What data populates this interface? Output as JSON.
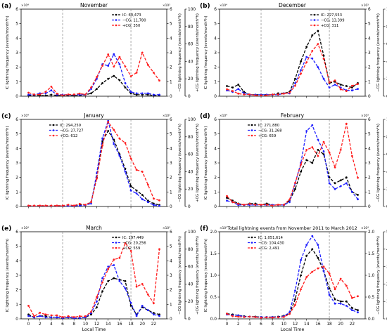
{
  "figure": {
    "xlabel": "Local Time",
    "left_ylabel": "IC lightning frequency (events/month*h)",
    "neg_ylabel": "−CG lightning frequency (events/month*h)",
    "pos_ylabel": "+CG lightning frequency (events/month*h)",
    "series_colors": {
      "ic": "#000000",
      "neg": "#1f1fff",
      "pos": "#ff1f1f"
    },
    "grid": false,
    "dashed_vlines_at": [
      6,
      18
    ]
  },
  "chart_data": [
    {
      "panel": "(a)",
      "title": "November",
      "type": "line",
      "x": [
        0,
        1,
        2,
        3,
        4,
        5,
        6,
        7,
        8,
        9,
        10,
        11,
        12,
        13,
        14,
        15,
        16,
        17,
        18,
        19,
        20,
        21,
        22,
        23
      ],
      "y_left_lim": [
        0,
        6
      ],
      "y_left_ticks": [
        "0",
        "1",
        "2",
        "3",
        "4",
        "5",
        "6"
      ],
      "y_left_mult": "×10⁴",
      "y_mid_lim": [
        0,
        6
      ],
      "y_mid_ticks": [
        "0",
        "1",
        "2",
        "3",
        "4",
        "5",
        "6"
      ],
      "y_mid_mult": "×10³",
      "y_right_lim": [
        0,
        100
      ],
      "y_right_ticks": [
        "0",
        "20",
        "40",
        "60",
        "80",
        "100"
      ],
      "legend_position": "top-right",
      "series": [
        {
          "name": "IC: 60,473",
          "key": "ic",
          "axis": "left",
          "values": [
            0.05,
            0.05,
            0.05,
            0.05,
            0.1,
            0.05,
            0.05,
            0.05,
            0.05,
            0.05,
            0.1,
            0.2,
            0.5,
            0.9,
            1.2,
            1.4,
            1.1,
            0.6,
            0.2,
            0.1,
            0.1,
            0.1,
            0.05,
            0.05
          ]
        },
        {
          "name": "−CG: 11,780",
          "key": "neg",
          "axis": "mid",
          "values": [
            0.1,
            0.1,
            0.2,
            0.2,
            0.4,
            0.1,
            0.1,
            0.1,
            0.1,
            0.1,
            0.1,
            0.5,
            1.2,
            2.2,
            2.1,
            2.9,
            2.2,
            0.9,
            0.3,
            0.2,
            0.2,
            0.2,
            0.1,
            0.1
          ]
        },
        {
          "name": "+CG: 350",
          "key": "pos",
          "axis": "right",
          "values": [
            4,
            2,
            2,
            5,
            11,
            3,
            1,
            2,
            2,
            3,
            2,
            10,
            22,
            35,
            48,
            34,
            45,
            34,
            23,
            27,
            50,
            36,
            27,
            18
          ]
        }
      ]
    },
    {
      "panel": "(b)",
      "title": "December",
      "type": "line",
      "x": [
        0,
        1,
        2,
        3,
        4,
        5,
        6,
        7,
        8,
        9,
        10,
        11,
        12,
        13,
        14,
        15,
        16,
        17,
        18,
        19,
        20,
        21,
        22,
        23
      ],
      "y_left_lim": [
        0,
        6
      ],
      "y_left_ticks": [
        "0",
        "1",
        "2",
        "3",
        "4",
        "5",
        "6"
      ],
      "y_left_mult": "×10⁴",
      "y_mid_lim": [
        0,
        6
      ],
      "y_mid_ticks": [
        "0",
        "1",
        "2",
        "3",
        "4",
        "5",
        "6"
      ],
      "y_mid_mult": "×10³",
      "y_right_lim": [
        0,
        100
      ],
      "y_right_ticks": [
        "0",
        "20",
        "40",
        "60",
        "80",
        "100"
      ],
      "legend_position": "top-right",
      "series": [
        {
          "name": "IC: 227,553",
          "key": "ic",
          "axis": "left",
          "values": [
            0.7,
            0.6,
            0.8,
            0.3,
            0.1,
            0.1,
            0.1,
            0.1,
            0.1,
            0.2,
            0.2,
            0.3,
            1.2,
            2.4,
            3.4,
            4.2,
            4.5,
            2.8,
            0.9,
            1.0,
            0.8,
            0.7,
            0.6,
            0.9
          ]
        },
        {
          "name": "−CG: 13,399",
          "key": "neg",
          "axis": "mid",
          "values": [
            0.4,
            0.3,
            0.5,
            0.2,
            0.1,
            0.1,
            0.1,
            0.1,
            0.1,
            0.1,
            0.2,
            0.2,
            0.9,
            1.8,
            2.7,
            2.6,
            2.0,
            1.2,
            0.6,
            0.8,
            0.6,
            0.4,
            0.4,
            0.5
          ]
        },
        {
          "name": "+CG: 311",
          "key": "pos",
          "axis": "right",
          "values": [
            8,
            6,
            3,
            2,
            2,
            1,
            1,
            1,
            2,
            2,
            3,
            4,
            12,
            26,
            39,
            52,
            60,
            43,
            16,
            18,
            8,
            6,
            12,
            14
          ]
        }
      ]
    },
    {
      "panel": "(c)",
      "title": "January",
      "type": "line",
      "x": [
        0,
        1,
        2,
        3,
        4,
        5,
        6,
        7,
        8,
        9,
        10,
        11,
        12,
        13,
        14,
        15,
        16,
        17,
        18,
        19,
        20,
        21,
        22,
        23
      ],
      "y_left_lim": [
        0,
        6
      ],
      "y_left_ticks": [
        "0",
        "1",
        "2",
        "3",
        "4",
        "5",
        "6"
      ],
      "y_left_mult": "×10⁴",
      "y_mid_lim": [
        0,
        6
      ],
      "y_mid_ticks": [
        "0",
        "1",
        "2",
        "3",
        "4",
        "5",
        "6"
      ],
      "y_mid_mult": "×10³",
      "y_right_lim": [
        0,
        100
      ],
      "y_right_ticks": [
        "0",
        "20",
        "40",
        "60",
        "80",
        "100"
      ],
      "legend_position": "top-left",
      "series": [
        {
          "name": "IC: 294,259",
          "key": "ic",
          "axis": "left",
          "values": [
            0.05,
            0.05,
            0.05,
            0.05,
            0.05,
            0.05,
            0.05,
            0.05,
            0.05,
            0.1,
            0.1,
            0.3,
            2.0,
            4.5,
            5.2,
            4.6,
            3.6,
            2.6,
            1.4,
            1.1,
            0.8,
            0.4,
            0.2,
            0.1
          ]
        },
        {
          "name": "−CG: 27,727",
          "key": "neg",
          "axis": "mid",
          "values": [
            0.05,
            0.05,
            0.05,
            0.05,
            0.05,
            0.05,
            0.05,
            0.05,
            0.05,
            0.05,
            0.1,
            0.2,
            2.3,
            4.7,
            5.9,
            4.3,
            3.5,
            2.4,
            1.1,
            0.9,
            0.5,
            0.3,
            0.1,
            0.05
          ]
        },
        {
          "name": "+CG: 612",
          "key": "pos",
          "axis": "right",
          "values": [
            1,
            1,
            1,
            1,
            1,
            1,
            1,
            2,
            1,
            3,
            2,
            5,
            32,
            70,
            97,
            88,
            78,
            73,
            55,
            42,
            40,
            25,
            9,
            7
          ]
        }
      ]
    },
    {
      "panel": "(d)",
      "title": "February",
      "type": "line",
      "x": [
        0,
        1,
        2,
        3,
        4,
        5,
        6,
        7,
        8,
        9,
        10,
        11,
        12,
        13,
        14,
        15,
        16,
        17,
        18,
        19,
        20,
        21,
        22,
        23
      ],
      "y_left_lim": [
        0,
        6
      ],
      "y_left_ticks": [
        "0",
        "1",
        "2",
        "3",
        "4",
        "5",
        "6"
      ],
      "y_left_mult": "×10⁴",
      "y_mid_lim": [
        0,
        6
      ],
      "y_mid_ticks": [
        "0",
        "1",
        "2",
        "3",
        "4",
        "5",
        "6"
      ],
      "y_mid_mult": "×10³",
      "y_right_lim": [
        0,
        100
      ],
      "y_right_ticks": [
        "0",
        "20",
        "40",
        "60",
        "80",
        "100"
      ],
      "legend_position": "top-left",
      "series": [
        {
          "name": "IC: 271,880",
          "key": "ic",
          "axis": "left",
          "values": [
            0.6,
            0.4,
            0.2,
            0.1,
            0.2,
            0.2,
            0.1,
            0.2,
            0.1,
            0.1,
            0.1,
            0.4,
            1.2,
            2.4,
            3.2,
            3.0,
            3.9,
            3.6,
            2.0,
            1.6,
            1.8,
            2.0,
            1.0,
            0.8
          ]
        },
        {
          "name": "−CG: 31,268",
          "key": "neg",
          "axis": "mid",
          "values": [
            0.4,
            0.3,
            0.1,
            0.1,
            0.1,
            0.1,
            0.1,
            0.1,
            0.1,
            0.1,
            0.1,
            0.3,
            1.6,
            3.0,
            5.2,
            5.6,
            4.6,
            3.8,
            1.6,
            1.2,
            1.4,
            1.6,
            1.0,
            0.5
          ]
        },
        {
          "name": "+CG: 659",
          "key": "pos",
          "axis": "right",
          "values": [
            12,
            5,
            3,
            2,
            3,
            2,
            2,
            2,
            1,
            2,
            2,
            8,
            27,
            48,
            65,
            68,
            58,
            74,
            62,
            45,
            65,
            95,
            58,
            33
          ]
        }
      ]
    },
    {
      "panel": "(e)",
      "title": "March",
      "type": "line",
      "x": [
        0,
        1,
        2,
        3,
        4,
        5,
        6,
        7,
        8,
        9,
        10,
        11,
        12,
        13,
        14,
        15,
        16,
        17,
        18,
        19,
        20,
        21,
        22,
        23
      ],
      "y_left_lim": [
        0,
        6
      ],
      "y_left_ticks": [
        "0",
        "1",
        "2",
        "3",
        "4",
        "5",
        "6"
      ],
      "y_left_mult": "×10⁴",
      "y_mid_lim": [
        0,
        6
      ],
      "y_mid_ticks": [
        "0",
        "1",
        "2",
        "3",
        "4",
        "5",
        "6"
      ],
      "y_mid_mult": "×10³",
      "y_right_lim": [
        0,
        100
      ],
      "y_right_ticks": [
        "0",
        "20",
        "40",
        "60",
        "80",
        "100"
      ],
      "legend_position": "top-right",
      "series": [
        {
          "name": "IC: 197,449",
          "key": "ic",
          "axis": "left",
          "values": [
            0.3,
            0.1,
            0.2,
            0.2,
            0.1,
            0.1,
            0.05,
            0.1,
            0.05,
            0.05,
            0.1,
            0.3,
            0.8,
            1.9,
            2.6,
            2.8,
            2.7,
            2.6,
            0.9,
            0.3,
            0.8,
            0.6,
            0.4,
            0.3
          ]
        },
        {
          "name": "−CG: 20,256",
          "key": "neg",
          "axis": "mid",
          "values": [
            0.2,
            0.1,
            0.2,
            0.1,
            0.1,
            0.1,
            0.05,
            0.1,
            0.05,
            0.05,
            0.1,
            0.4,
            1.2,
            2.8,
            3.6,
            3.7,
            2.6,
            2.1,
            1.1,
            0.2,
            0.9,
            0.6,
            0.3,
            0.2
          ]
        },
        {
          "name": "+CG: 559",
          "key": "pos",
          "axis": "right",
          "values": [
            15,
            3,
            7,
            5,
            4,
            4,
            2,
            3,
            2,
            3,
            3,
            8,
            25,
            42,
            57,
            68,
            70,
            87,
            78,
            37,
            40,
            28,
            18,
            80
          ]
        }
      ]
    },
    {
      "panel": "(f)",
      "title": "Total lightning events from November 2011 to March 2012",
      "type": "line",
      "x": [
        0,
        1,
        2,
        3,
        4,
        5,
        6,
        7,
        8,
        9,
        10,
        11,
        12,
        13,
        14,
        15,
        16,
        17,
        18,
        19,
        20,
        21,
        22,
        23
      ],
      "y_left_lim": [
        0,
        2.0
      ],
      "y_left_ticks": [
        "0.0",
        "0.5",
        "1.0",
        "1.5",
        "2.0"
      ],
      "y_left_mult": "×10⁵",
      "y_mid_lim": [
        0,
        2.0
      ],
      "y_mid_ticks": [
        "0.0",
        "0.5",
        "1.0",
        "1.5",
        "2.0"
      ],
      "y_mid_mult": "×10⁴",
      "y_right_lim": [
        0,
        500
      ],
      "y_right_ticks": [
        "0",
        "100",
        "200",
        "300",
        "400",
        "500"
      ],
      "legend_position": "top-left",
      "series": [
        {
          "name": "IC: 1,051,614",
          "key": "ic",
          "axis": "left",
          "values": [
            0.12,
            0.1,
            0.08,
            0.06,
            0.05,
            0.05,
            0.04,
            0.04,
            0.04,
            0.05,
            0.07,
            0.12,
            0.45,
            1.0,
            1.45,
            1.6,
            1.4,
            1.1,
            0.7,
            0.45,
            0.4,
            0.4,
            0.25,
            0.2
          ]
        },
        {
          "name": "−CG: 104,430",
          "key": "neg",
          "axis": "mid",
          "values": [
            0.1,
            0.08,
            0.08,
            0.05,
            0.05,
            0.04,
            0.04,
            0.04,
            0.04,
            0.04,
            0.06,
            0.15,
            0.65,
            1.35,
            1.7,
            1.9,
            1.7,
            1.1,
            0.55,
            0.35,
            0.35,
            0.3,
            0.2,
            0.15
          ]
        },
        {
          "name": "+CG: 2,491",
          "key": "pos",
          "axis": "right",
          "values": [
            30,
            15,
            12,
            10,
            12,
            10,
            6,
            8,
            7,
            9,
            11,
            28,
            80,
            170,
            240,
            270,
            290,
            300,
            260,
            170,
            230,
            190,
            120,
            130
          ]
        }
      ]
    }
  ]
}
